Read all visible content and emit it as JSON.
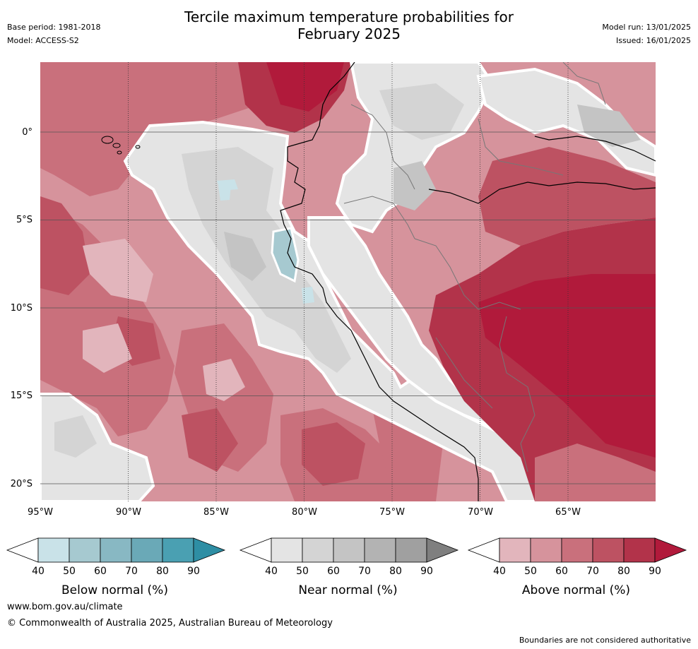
{
  "header": {
    "title_line1": "Tercile maximum temperature probabilities for",
    "title_line2": "February 2025",
    "base_period": "Base period: 1981-2018",
    "model": "Model: ACCESS-S2",
    "model_run": "Model run: 13/01/2025",
    "issued": "Issued: 16/01/2025"
  },
  "map": {
    "lat_ticks": [
      "0°",
      "5°S",
      "10°S",
      "15°S",
      "20°S"
    ],
    "lon_ticks": [
      "95°W",
      "90°W",
      "85°W",
      "80°W",
      "75°W",
      "70°W",
      "65°W"
    ],
    "colors": {
      "below": [
        "#ffffff",
        "#c9e2e8",
        "#a6c9d0",
        "#88b8c3",
        "#6aa9b7",
        "#4aa0b2",
        "#2e8ea4"
      ],
      "near": [
        "#ffffff",
        "#e4e4e4",
        "#d4d4d4",
        "#c4c4c4",
        "#b3b3b3",
        "#a0a0a0",
        "#7f7f7f"
      ],
      "above": [
        "#ffffff",
        "#e2b5bc",
        "#d6939c",
        "#c9707c",
        "#bd5262",
        "#b2334a",
        "#b11a3b"
      ]
    }
  },
  "colorbars": [
    {
      "title": "Below normal (%)",
      "labels": [
        "40",
        "50",
        "60",
        "70",
        "80",
        "90"
      ]
    },
    {
      "title": "Near normal (%)",
      "labels": [
        "40",
        "50",
        "60",
        "70",
        "80",
        "90"
      ]
    },
    {
      "title": "Above normal (%)",
      "labels": [
        "40",
        "50",
        "60",
        "70",
        "80",
        "90"
      ]
    }
  ],
  "footer": {
    "website": "www.bom.gov.au/climate",
    "copyright": "© Commonwealth of Australia 2025, Australian Bureau of Meteorology",
    "disclaimer": "Boundaries are not considered authoritative"
  }
}
